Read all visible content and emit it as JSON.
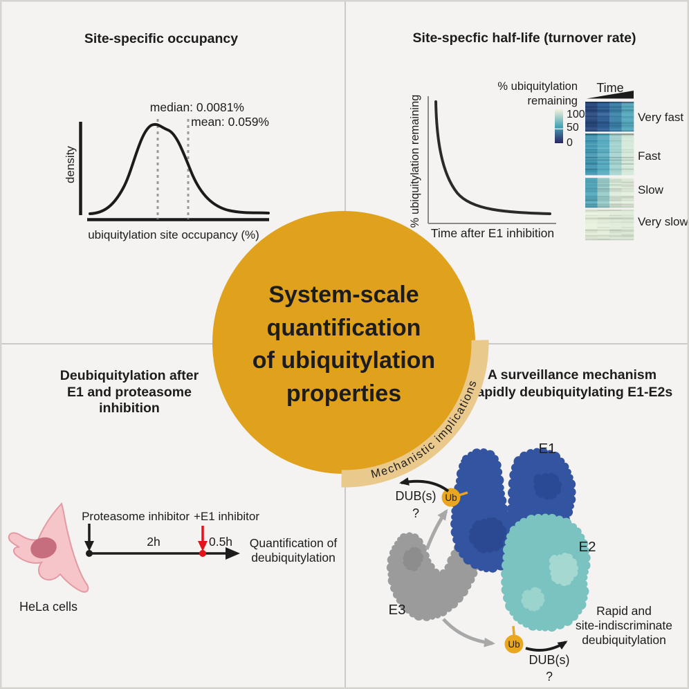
{
  "colors": {
    "background": "#f4f3f1",
    "border": "#d6d4d1",
    "divider": "#c9c9c9",
    "ink": "#1c1c1c",
    "accent_gold": "#e0a21c",
    "band_gold": "#eaca8c",
    "accent_red": "#e3131b",
    "gray_arrow": "#a8a8a8",
    "dashed_gray": "#9a9a92",
    "axis_gray": "#8a8a8a",
    "e1_blue": "#3254a1",
    "e1_blue_dark": "#1f3a7d",
    "e2_teal": "#7ac3c0",
    "e2_teal_light": "#a9dad3",
    "e3_gray": "#9b9b9b",
    "e3_gray_dark": "#828282",
    "ub_orange": "#eaa61f",
    "ub_text": "#241c0a",
    "cell_body": "#f5c5c9",
    "cell_outline": "#e39aa3",
    "cell_nucleus": "#c76e7e"
  },
  "center": {
    "title_lines": [
      "System-scale",
      "quantification",
      "of ubiquitylation",
      "properties"
    ],
    "arc_label": "Mechanistic implications"
  },
  "panels": {
    "occupancy": {
      "title": "Site-specific occupancy",
      "median_label": "median: 0.0081%",
      "mean_label": "mean: 0.059%",
      "ylabel": "density",
      "xlabel": "ubiquitylation site occupancy (%)"
    },
    "halflife": {
      "title": "Site-specfic half-life (turnover rate)",
      "ylabel": "% ubiquitylation remaining",
      "xlabel": "Time after E1 inhibition",
      "legend_title_lines": [
        "% ubiquitylation",
        "remaining"
      ],
      "colorbar_ticks": [
        "100",
        "50",
        "0"
      ],
      "colorbar_stops": [
        "#f3f1da",
        "#4aa6b6",
        "#2a2363"
      ],
      "time_label": "Time",
      "heatmap_groups": [
        {
          "label": "Very fast",
          "col_colors": [
            "#29497f",
            "#2d5d94",
            "#3b82a9",
            "#55a8bd"
          ]
        },
        {
          "label": "Fast",
          "col_colors": [
            "#3e93b0",
            "#55aabf",
            "#a3d2cf",
            "#d3e8d8"
          ]
        },
        {
          "label": "Slow",
          "col_colors": [
            "#58abbf",
            "#9bcecb",
            "#dcecdb",
            "#e5f0df"
          ]
        },
        {
          "label": "Very slow",
          "col_colors": [
            "#e8f1de",
            "#e5efdc",
            "#e1edda",
            "#deecd8"
          ]
        }
      ]
    },
    "deubiquitylation": {
      "title_lines": [
        "Deubiquitylation after",
        "E1 and proteasome",
        "inhibition"
      ],
      "cell_label": "HeLa cells",
      "treatment_black": "Proteasome inhibitor",
      "treatment_red": "+E1 inhibitor",
      "interval_1": "2h",
      "interval_2": "0.5h",
      "readout_lines": [
        "Quantification of",
        "deubiquitylation"
      ]
    },
    "surveillance": {
      "title_lines": [
        "A surveillance mechanism",
        "rapidly deubiquitylating E1-E2s"
      ],
      "label_e1": "E1",
      "label_e2": "E2",
      "label_e3": "E3",
      "label_ub": "Ub",
      "dub_label": "DUB(s)",
      "dub_question": "?",
      "note_lines": [
        "Rapid and",
        "site-indiscriminate",
        "deubiquitylation"
      ]
    }
  }
}
